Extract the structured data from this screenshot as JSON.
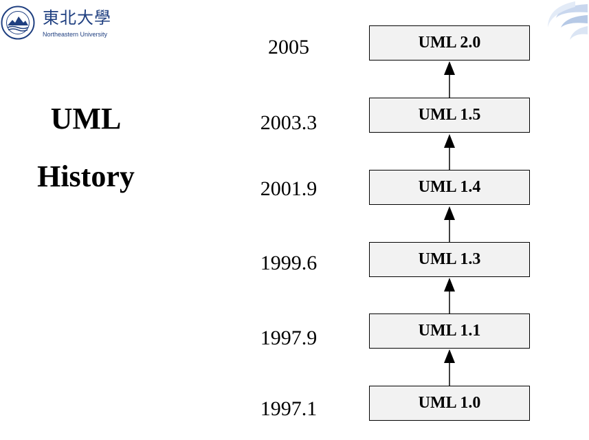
{
  "logo": {
    "name_cn": "東北大學",
    "name_en": "Northeastern University",
    "seal_text": "NORTHEASTERN UNIVERSITY 1923"
  },
  "title": {
    "line1": "UML",
    "line2": "History"
  },
  "timeline": [
    {
      "year": "2005",
      "version": "UML 2.0"
    },
    {
      "year": "2003.3",
      "version": "UML 1.5"
    },
    {
      "year": "2001.9",
      "version": "UML 1.4"
    },
    {
      "year": "1999.6",
      "version": "UML 1.3"
    },
    {
      "year": "1997.9",
      "version": "UML 1.1"
    },
    {
      "year": "1997.1",
      "version": "UML 1.0"
    }
  ],
  "colors": {
    "box_fill": "#f2f2f2",
    "box_border": "#000000",
    "logo_blue": "#1f3f80",
    "swoosh_blue": "#a9bfe0"
  },
  "icons": {
    "seal": "university-seal-icon",
    "corner": "swoosh-icon"
  }
}
